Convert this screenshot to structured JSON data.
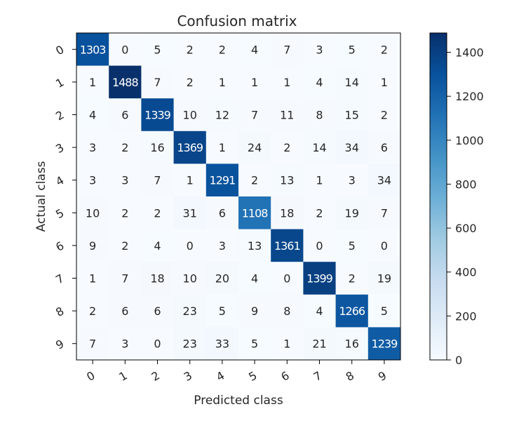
{
  "chart_data": {
    "type": "heatmap",
    "title": "Confusion matrix",
    "xlabel": "Predicted class",
    "ylabel": "Actual class",
    "x_categories": [
      "0",
      "1",
      "2",
      "3",
      "4",
      "5",
      "6",
      "7",
      "8",
      "9"
    ],
    "y_categories": [
      "0",
      "1",
      "2",
      "3",
      "4",
      "5",
      "6",
      "7",
      "8",
      "9"
    ],
    "values": [
      [
        1303,
        0,
        5,
        2,
        2,
        4,
        7,
        3,
        5,
        2
      ],
      [
        1,
        1488,
        7,
        2,
        1,
        1,
        1,
        4,
        14,
        1
      ],
      [
        4,
        6,
        1339,
        10,
        12,
        7,
        11,
        8,
        15,
        2
      ],
      [
        3,
        2,
        16,
        1369,
        1,
        24,
        2,
        14,
        34,
        6
      ],
      [
        3,
        3,
        7,
        1,
        1291,
        2,
        13,
        1,
        3,
        34
      ],
      [
        10,
        2,
        2,
        31,
        6,
        1108,
        18,
        2,
        19,
        7
      ],
      [
        9,
        2,
        4,
        0,
        3,
        13,
        1361,
        0,
        5,
        0
      ],
      [
        1,
        7,
        18,
        10,
        20,
        4,
        0,
        1399,
        2,
        19
      ],
      [
        2,
        6,
        6,
        23,
        5,
        9,
        8,
        4,
        1266,
        5
      ],
      [
        7,
        3,
        0,
        23,
        33,
        5,
        1,
        21,
        16,
        1239
      ]
    ],
    "colormap": "Blues",
    "color_min": 0,
    "color_max": 1488,
    "colorbar_ticks": [
      0,
      200,
      400,
      600,
      800,
      1000,
      1200,
      1400
    ],
    "text_color_dark": "#262626",
    "text_color_light": "#ffffff"
  }
}
